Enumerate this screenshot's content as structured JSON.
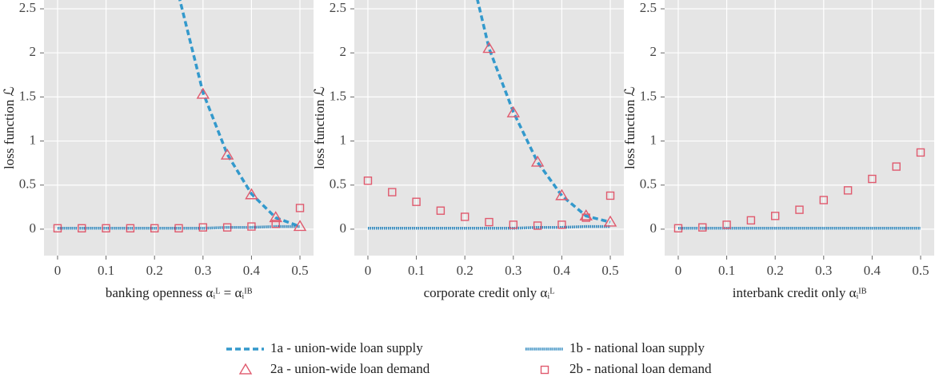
{
  "chart_data": [
    {
      "type": "line",
      "x_label": "banking openness αᵢᴸ = αᵢᴵᴮ",
      "y_label": "loss function ℒ",
      "x": [
        0,
        0.05,
        0.1,
        0.15,
        0.2,
        0.25,
        0.3,
        0.35,
        0.4,
        0.45,
        0.5
      ],
      "xlim": [
        -0.028,
        0.528
      ],
      "ylim": [
        -0.3,
        2.6
      ],
      "xticks": [
        0,
        0.1,
        0.2,
        0.3,
        0.4,
        0.5
      ],
      "yticks": [
        0,
        0.5,
        1,
        1.5,
        2,
        2.5
      ],
      "grid": true,
      "series": [
        {
          "style": "dashed",
          "color": "#3399cc",
          "values": [
            null,
            null,
            null,
            null,
            null,
            2.65,
            1.55,
            0.85,
            0.4,
            0.13,
            0.03
          ]
        },
        {
          "style": "dotted",
          "color": "#2a86bd",
          "values": [
            0.01,
            0.01,
            0.01,
            0.01,
            0.01,
            0.01,
            0.01,
            0.02,
            0.02,
            0.03,
            0.03
          ]
        },
        {
          "style": "triangle",
          "color": "#e05a6e",
          "values": [
            null,
            null,
            null,
            null,
            null,
            null,
            1.53,
            0.84,
            0.39,
            0.13,
            0.03
          ]
        },
        {
          "style": "square",
          "color": "#e05a6e",
          "values": [
            0.01,
            0.01,
            0.01,
            0.01,
            0.01,
            0.01,
            0.02,
            0.02,
            0.03,
            0.06,
            0.24
          ]
        }
      ]
    },
    {
      "type": "line",
      "x_label": "corporate credit only αᵢᴸ",
      "y_label": "loss function ℒ",
      "x": [
        0,
        0.05,
        0.1,
        0.15,
        0.2,
        0.25,
        0.3,
        0.35,
        0.4,
        0.45,
        0.5
      ],
      "xlim": [
        -0.028,
        0.528
      ],
      "ylim": [
        -0.3,
        2.6
      ],
      "xticks": [
        0,
        0.1,
        0.2,
        0.3,
        0.4,
        0.5
      ],
      "yticks": [
        0,
        0.5,
        1,
        1.5,
        2,
        2.5
      ],
      "grid": true,
      "series": [
        {
          "style": "dashed",
          "color": "#3399cc",
          "values": [
            null,
            null,
            null,
            null,
            3.2,
            2.05,
            1.33,
            0.76,
            0.38,
            0.15,
            0.08
          ]
        },
        {
          "style": "dotted",
          "color": "#2a86bd",
          "values": [
            0.01,
            0.01,
            0.01,
            0.01,
            0.01,
            0.01,
            0.01,
            0.02,
            0.02,
            0.03,
            0.03
          ]
        },
        {
          "style": "triangle",
          "color": "#e05a6e",
          "values": [
            null,
            null,
            null,
            null,
            null,
            2.05,
            1.32,
            0.76,
            0.38,
            0.15,
            0.08
          ]
        },
        {
          "style": "square",
          "color": "#e05a6e",
          "values": [
            0.55,
            0.42,
            0.31,
            0.21,
            0.14,
            0.08,
            0.05,
            0.04,
            0.05,
            0.13,
            0.38
          ]
        }
      ]
    },
    {
      "type": "line",
      "x_label": "interbank credit only αᵢᴵᴮ",
      "y_label": "loss function ℒ",
      "x": [
        0,
        0.05,
        0.1,
        0.15,
        0.2,
        0.25,
        0.3,
        0.35,
        0.4,
        0.45,
        0.5
      ],
      "xlim": [
        -0.028,
        0.528
      ],
      "ylim": [
        -0.3,
        2.6
      ],
      "xticks": [
        0,
        0.1,
        0.2,
        0.3,
        0.4,
        0.5
      ],
      "yticks": [
        0,
        0.5,
        1,
        1.5,
        2,
        2.5
      ],
      "grid": true,
      "series": [
        {
          "style": "dashed",
          "color": "#3399cc",
          "values": [
            null,
            null,
            null,
            null,
            null,
            null,
            null,
            null,
            null,
            null,
            null
          ]
        },
        {
          "style": "dotted",
          "color": "#2a86bd",
          "values": [
            0.01,
            0.01,
            0.01,
            0.01,
            0.01,
            0.01,
            0.01,
            0.01,
            0.01,
            0.01,
            0.01
          ]
        },
        {
          "style": "triangle",
          "color": "#e05a6e",
          "values": [
            null,
            null,
            null,
            null,
            null,
            null,
            null,
            null,
            null,
            null,
            null
          ]
        },
        {
          "style": "square",
          "color": "#e05a6e",
          "values": [
            0.01,
            0.02,
            0.05,
            0.1,
            0.15,
            0.22,
            0.33,
            0.44,
            0.57,
            0.71,
            0.87
          ]
        }
      ]
    }
  ],
  "legend": {
    "entries": [
      {
        "name": "1a - union-wide loan supply",
        "style": "dashed",
        "color": "#3399cc"
      },
      {
        "name": "1b - national loan supply",
        "style": "dotted",
        "color": "#2a86bd"
      },
      {
        "name": "2a - union-wide loan demand",
        "style": "triangle",
        "color": "#e05a6e"
      },
      {
        "name": "2b - national loan demand",
        "style": "square",
        "color": "#e05a6e"
      }
    ]
  }
}
